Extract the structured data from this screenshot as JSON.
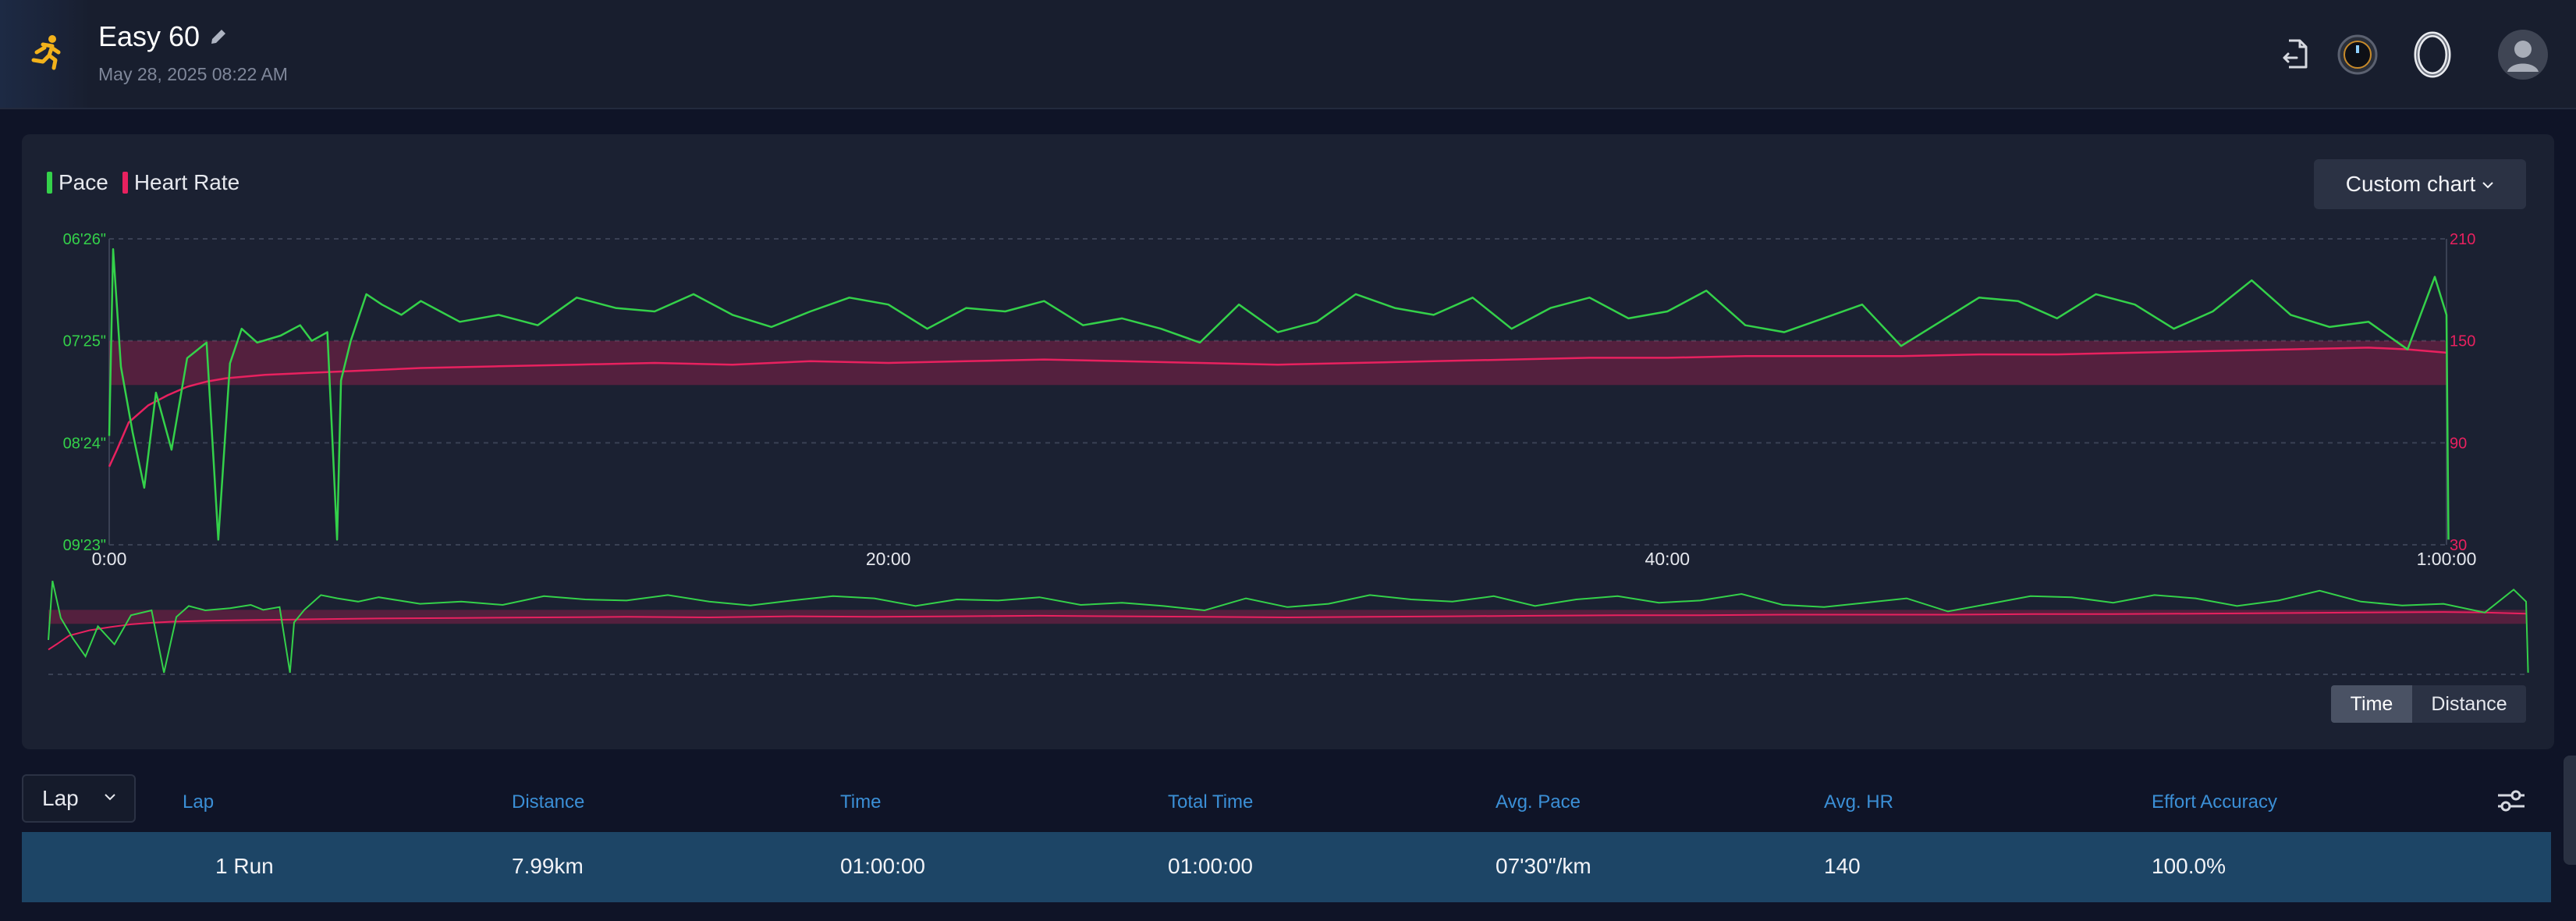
{
  "header": {
    "title": "Easy 60",
    "date": "May 28, 2025 08:22 AM",
    "icons": [
      "running-icon",
      "edit-icon",
      "export-icon",
      "watch-icon",
      "ring-icon",
      "user-avatar"
    ]
  },
  "chart": {
    "legend": [
      {
        "name": "Pace",
        "color": "#34d14a"
      },
      {
        "name": "Heart Rate",
        "color": "#e8215f"
      }
    ],
    "custom_chart_label": "Custom chart",
    "toggle": {
      "time": "Time",
      "distance": "Distance",
      "selected": "Time"
    }
  },
  "chart_data": {
    "type": "line",
    "x_label_unit": "time",
    "x_ticks": [
      "0:00",
      "20:00",
      "40:00",
      "1:00:00"
    ],
    "y_left_ticks": [
      "06'26\"",
      "07'25\"",
      "08'24\"",
      "09'23\""
    ],
    "y_right_ticks": [
      "210",
      "150",
      "90",
      "30"
    ],
    "heart_rate_zone": [
      124,
      150
    ],
    "series": [
      {
        "name": "Pace",
        "axis": "left",
        "unit": "sec/km",
        "x_minutes": [
          0,
          0.1,
          0.3,
          0.6,
          0.9,
          1.2,
          1.6,
          2.0,
          2.5,
          2.8,
          3.1,
          3.4,
          3.8,
          4.4,
          4.9,
          5.2,
          5.6,
          5.85,
          5.95,
          6.2,
          6.6,
          7.0,
          7.5,
          8.0,
          8.5,
          9.0,
          10,
          11,
          12,
          13,
          14,
          15,
          16,
          17,
          18,
          19,
          20,
          21,
          22,
          23,
          24,
          25,
          26,
          27,
          28,
          29,
          30,
          31,
          32,
          33,
          34,
          35,
          36,
          37,
          38,
          39,
          40,
          41,
          42,
          43,
          44,
          45,
          46,
          47,
          48,
          49,
          50,
          51,
          52,
          53,
          54,
          55,
          56,
          57,
          58,
          59,
          59.7,
          60,
          60.05
        ],
        "values": [
          500,
          392,
          460,
          498,
          530,
          475,
          508,
          455,
          446,
          560,
          458,
          438,
          446,
          442,
          436,
          445,
          440,
          560,
          468,
          445,
          418,
          424,
          430,
          422,
          428,
          434,
          430,
          436,
          420,
          426,
          428,
          418,
          430,
          437,
          428,
          420,
          424,
          438,
          426,
          428,
          422,
          436,
          432,
          438,
          446,
          424,
          440,
          434,
          418,
          426,
          430,
          420,
          438,
          426,
          420,
          432,
          428,
          416,
          436,
          440,
          432,
          424,
          448,
          434,
          420,
          422,
          432,
          418,
          424,
          438,
          428,
          410,
          430,
          437,
          434,
          450,
          408,
          430,
          560
        ]
      },
      {
        "name": "Heart Rate",
        "axis": "right",
        "unit": "bpm",
        "x_minutes": [
          0,
          0.2,
          0.5,
          1.0,
          1.5,
          2.0,
          2.5,
          3.0,
          4.0,
          5.0,
          6.0,
          7.0,
          8.0,
          10,
          12,
          14,
          16,
          18,
          20,
          22,
          24,
          26,
          28,
          30,
          32,
          34,
          36,
          38,
          40,
          42,
          44,
          46,
          48,
          50,
          52,
          54,
          56,
          58,
          59,
          60
        ],
        "values": [
          76,
          86,
          102,
          112,
          118,
          123,
          126,
          128,
          130,
          131,
          132,
          133,
          134,
          135,
          136,
          137,
          136,
          138,
          137,
          138,
          139,
          138,
          137,
          136,
          137,
          138,
          139,
          140,
          140,
          141,
          141,
          141,
          142,
          142,
          143,
          144,
          145,
          146,
          145,
          143
        ]
      }
    ],
    "xlim_minutes": [
      0,
      60
    ],
    "ylim_left_sec_per_km": [
      386,
      563
    ],
    "ylim_right_bpm": [
      30,
      210
    ],
    "grid": true
  },
  "laps": {
    "selector_label": "Lap",
    "columns": [
      "Lap",
      "Distance",
      "Time",
      "Total Time",
      "Avg. Pace",
      "Avg. HR",
      "Effort Accuracy"
    ],
    "rows": [
      {
        "lap": "1 Run",
        "distance": "7.99km",
        "time": "01:00:00",
        "total_time": "01:00:00",
        "avg_pace": "07'30\"/km",
        "avg_hr": "140",
        "effort_accuracy": "100.0%"
      }
    ]
  }
}
